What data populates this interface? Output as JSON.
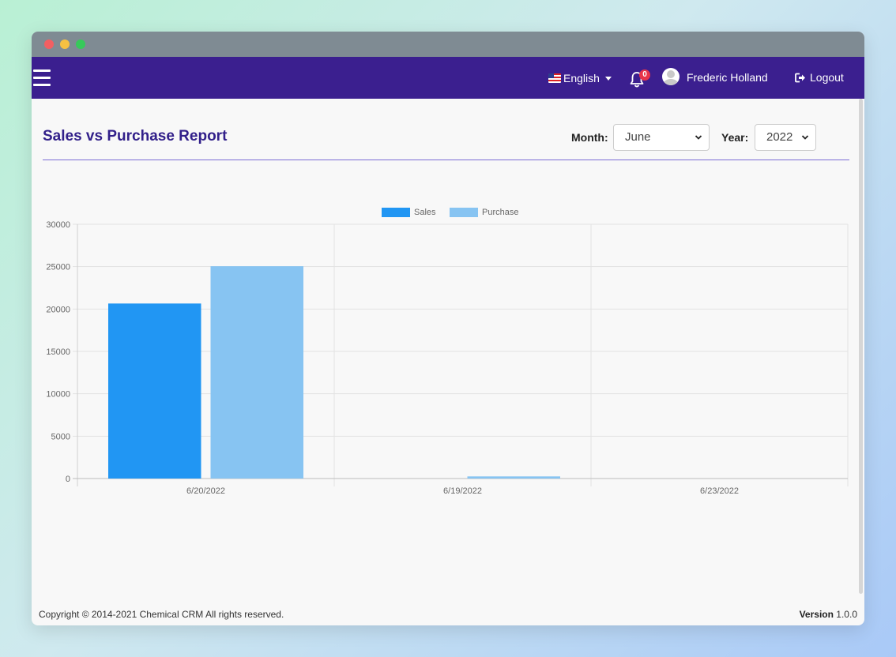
{
  "navbar": {
    "language": "English",
    "notifications_count": "0",
    "user_name": "Frederic Holland",
    "logout_label": "Logout"
  },
  "report": {
    "title": "Sales vs Purchase Report",
    "month_label": "Month:",
    "month_value": "June",
    "year_label": "Year:",
    "year_value": "2022"
  },
  "chart_data": {
    "type": "bar",
    "categories": [
      "6/20/2022",
      "6/19/2022",
      "6/23/2022"
    ],
    "series": [
      {
        "name": "Sales",
        "values": [
          20650,
          0,
          0
        ],
        "color": "#2196f3"
      },
      {
        "name": "Purchase",
        "values": [
          25050,
          250,
          0
        ],
        "color": "#87c4f2"
      }
    ],
    "ylim": [
      0,
      30000
    ],
    "yticks": [
      0,
      5000,
      10000,
      15000,
      20000,
      25000,
      30000
    ],
    "legend": "top-center",
    "grid": true
  },
  "footer": {
    "copyright": "Copyright © 2014-2021 Chemical CRM All rights reserved.",
    "version_label": "Version",
    "version_value": "1.0.0"
  }
}
